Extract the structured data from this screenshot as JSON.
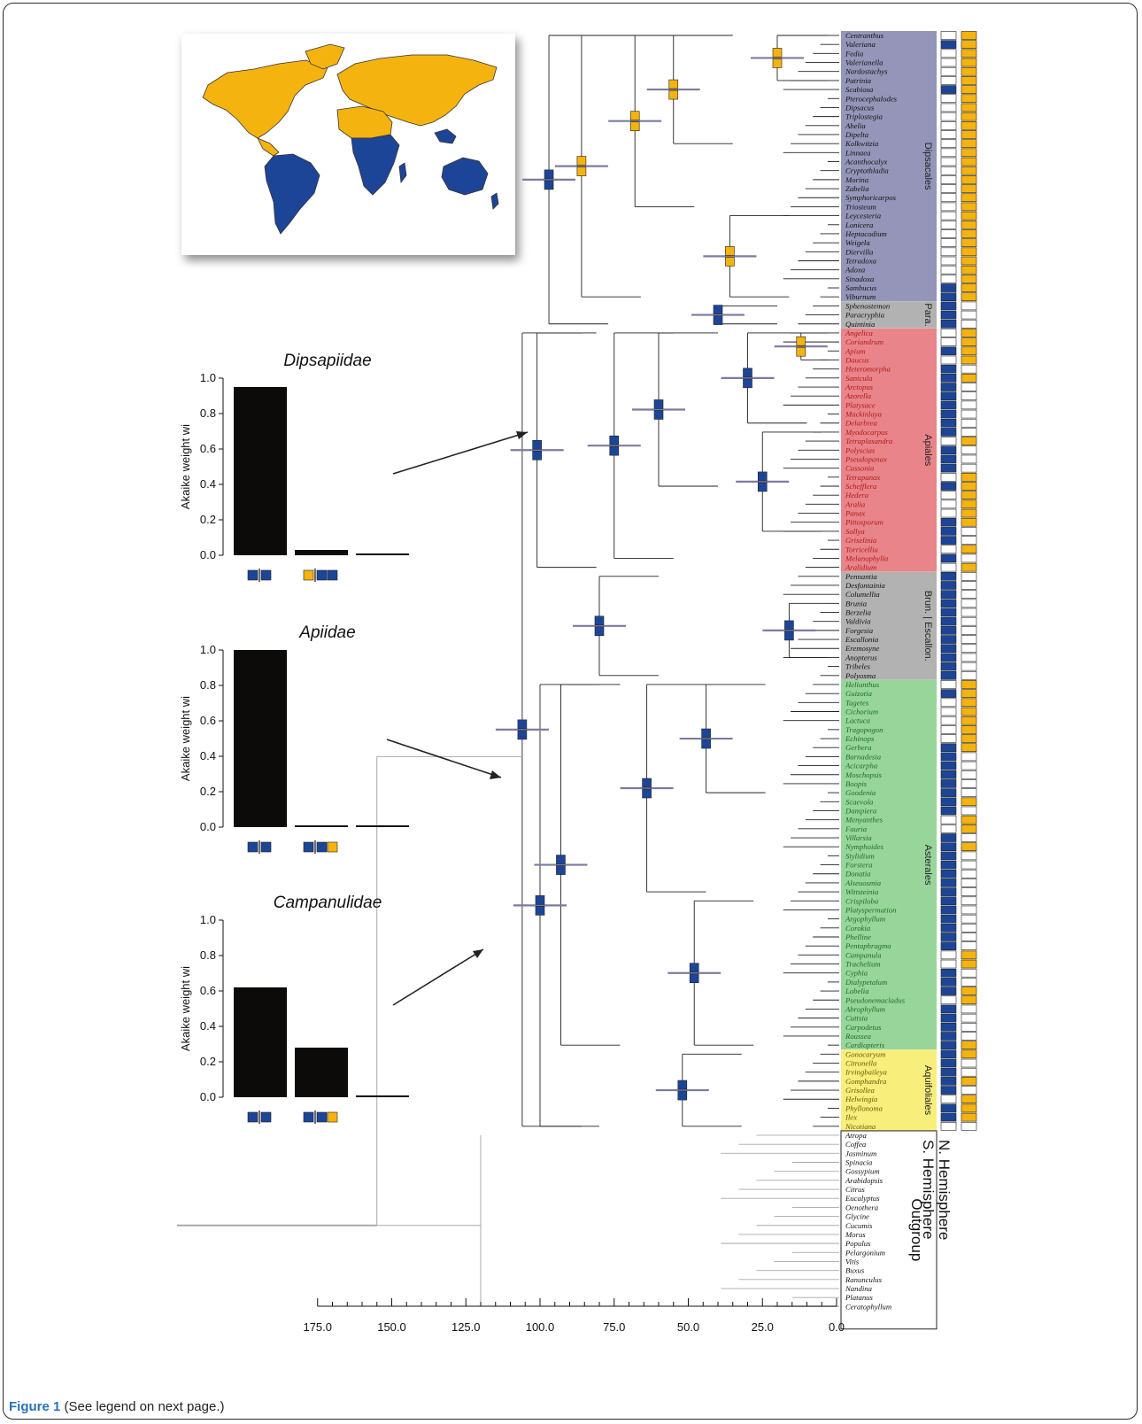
{
  "caption": {
    "label": "Figure 1",
    "text": "(See legend on next page.)"
  },
  "colors": {
    "north": "#f5b30f",
    "south": "#1d4597",
    "bar": "#0c0b0a",
    "hpd": "#7b7ba0",
    "outgroup": "#a8a8a8"
  },
  "map": {
    "northern_color": "#f5b30f",
    "southern_color": "#1d4597"
  },
  "panels": [
    {
      "title": "Dipsapiidae",
      "ylabel": "Akaike weight wi",
      "values": [
        0.95,
        0.03,
        0.01
      ],
      "models": [
        [
          "S",
          "S"
        ],
        [
          "N",
          "S",
          "S"
        ],
        [
          "S"
        ]
      ]
    },
    {
      "title": "Apiidae",
      "ylabel": "Akaike weight wi",
      "values": [
        1.0,
        0.01,
        0.01
      ],
      "models": [
        [
          "S",
          "S"
        ],
        [
          "S",
          "S",
          "N"
        ],
        [
          "S"
        ]
      ]
    },
    {
      "title": "Campanulidae",
      "ylabel": "Akaike weight wi",
      "values": [
        0.62,
        0.28,
        0.01
      ],
      "models": [
        [
          "S",
          "S"
        ],
        [
          "S",
          "S",
          "N"
        ],
        [
          "S"
        ]
      ]
    }
  ],
  "panel_ticks": [
    "0.0",
    "0.2",
    "0.4",
    "0.6",
    "0.8",
    "1.0"
  ],
  "time_axis": {
    "ticks": [
      "175.0",
      "150.0",
      "125.0",
      "100.0",
      "75.0",
      "50.0",
      "25.0",
      "0.0"
    ]
  },
  "clades": [
    {
      "name": "Dipsacales",
      "first": 0,
      "last": 29,
      "color": "#9495b8"
    },
    {
      "name": "Para.",
      "first": 30,
      "last": 32,
      "color": "#b2b2b2"
    },
    {
      "name": "Apiales",
      "first": 33,
      "last": 59,
      "color": "#e9858a"
    },
    {
      "name": "Brun. | Escallon.",
      "first": 60,
      "last": 71,
      "color": "#b2b2b2"
    },
    {
      "name": "Asterales",
      "first": 72,
      "last": 112,
      "color": "#98d59b"
    },
    {
      "name": "Aquifoliales",
      "first": 113,
      "last": 121,
      "color": "#f7ee7c"
    },
    {
      "name": "Outgroup",
      "first": 122,
      "last": 143,
      "color": "#ffffff"
    }
  ],
  "hemisphere_labels": {
    "north": "N. Hemisphere",
    "south": "S. Hemisphere"
  },
  "taxa": [
    {
      "name": "Centranthus",
      "s": 0,
      "n": 1
    },
    {
      "name": "Valeriana",
      "s": 1,
      "n": 1
    },
    {
      "name": "Fedia",
      "s": 0,
      "n": 1
    },
    {
      "name": "Valerianella",
      "s": 0,
      "n": 1
    },
    {
      "name": "Nardostachys",
      "s": 0,
      "n": 1
    },
    {
      "name": "Patrinia",
      "s": 0,
      "n": 1
    },
    {
      "name": "Scabiosa",
      "s": 1,
      "n": 1
    },
    {
      "name": "Pterocephalodes",
      "s": 0,
      "n": 1
    },
    {
      "name": "Dipsacus",
      "s": 0,
      "n": 1
    },
    {
      "name": "Triplostegia",
      "s": 0,
      "n": 1
    },
    {
      "name": "Abelia",
      "s": 0,
      "n": 1
    },
    {
      "name": "Dipelta",
      "s": 0,
      "n": 1
    },
    {
      "name": "Kolkwitzia",
      "s": 0,
      "n": 1
    },
    {
      "name": "Linnaea",
      "s": 0,
      "n": 1
    },
    {
      "name": "Acanthocalyx",
      "s": 0,
      "n": 1
    },
    {
      "name": "Cryptothladia",
      "s": 0,
      "n": 1
    },
    {
      "name": "Morina",
      "s": 0,
      "n": 1
    },
    {
      "name": "Zabelia",
      "s": 0,
      "n": 1
    },
    {
      "name": "Symphoricarpos",
      "s": 0,
      "n": 1
    },
    {
      "name": "Triosteum",
      "s": 0,
      "n": 1
    },
    {
      "name": "Leycesteria",
      "s": 0,
      "n": 1
    },
    {
      "name": "Lonicera",
      "s": 0,
      "n": 1
    },
    {
      "name": "Heptacodium",
      "s": 0,
      "n": 1
    },
    {
      "name": "Weigela",
      "s": 0,
      "n": 1
    },
    {
      "name": "Diervilla",
      "s": 0,
      "n": 1
    },
    {
      "name": "Tetradoxa",
      "s": 0,
      "n": 1
    },
    {
      "name": "Adoxa",
      "s": 0,
      "n": 1
    },
    {
      "name": "Sinadoxa",
      "s": 0,
      "n": 1
    },
    {
      "name": "Sambucus",
      "s": 1,
      "n": 1
    },
    {
      "name": "Viburnum",
      "s": 1,
      "n": 1
    },
    {
      "name": "Sphenostemon",
      "s": 1,
      "n": 0
    },
    {
      "name": "Paracryphia",
      "s": 1,
      "n": 0
    },
    {
      "name": "Quintinia",
      "s": 1,
      "n": 0
    },
    {
      "name": "Angelica",
      "s": 0,
      "n": 1
    },
    {
      "name": "Coriandrum",
      "s": 0,
      "n": 1
    },
    {
      "name": "Apium",
      "s": 1,
      "n": 1
    },
    {
      "name": "Daucus",
      "s": 0,
      "n": 1
    },
    {
      "name": "Heteromorpha",
      "s": 1,
      "n": 0
    },
    {
      "name": "Sanicula",
      "s": 1,
      "n": 1
    },
    {
      "name": "Arctopus",
      "s": 1,
      "n": 0
    },
    {
      "name": "Azorella",
      "s": 1,
      "n": 0
    },
    {
      "name": "Platysace",
      "s": 1,
      "n": 0
    },
    {
      "name": "Mackinlaya",
      "s": 1,
      "n": 0
    },
    {
      "name": "Delarbrea",
      "s": 1,
      "n": 0
    },
    {
      "name": "Myodocarpus",
      "s": 1,
      "n": 0
    },
    {
      "name": "Tetraplasandra",
      "s": 0,
      "n": 1
    },
    {
      "name": "Polyscias",
      "s": 1,
      "n": 0
    },
    {
      "name": "Pseudopanax",
      "s": 1,
      "n": 0
    },
    {
      "name": "Cussonia",
      "s": 1,
      "n": 0
    },
    {
      "name": "Tetrapanax",
      "s": 0,
      "n": 1
    },
    {
      "name": "Schefflera",
      "s": 1,
      "n": 1
    },
    {
      "name": "Hedera",
      "s": 0,
      "n": 1
    },
    {
      "name": "Aralia",
      "s": 0,
      "n": 1
    },
    {
      "name": "Panax",
      "s": 0,
      "n": 1
    },
    {
      "name": "Pittosporum",
      "s": 1,
      "n": 1
    },
    {
      "name": "Sollya",
      "s": 1,
      "n": 0
    },
    {
      "name": "Griselinia",
      "s": 1,
      "n": 0
    },
    {
      "name": "Torricellia",
      "s": 0,
      "n": 1
    },
    {
      "name": "Melanophylla",
      "s": 1,
      "n": 0
    },
    {
      "name": "Aralidium",
      "s": 0,
      "n": 1
    },
    {
      "name": "Pennantia",
      "s": 1,
      "n": 0
    },
    {
      "name": "Desfontainia",
      "s": 1,
      "n": 0
    },
    {
      "name": "Columellia",
      "s": 1,
      "n": 0
    },
    {
      "name": "Brunia",
      "s": 1,
      "n": 0
    },
    {
      "name": "Berzelia",
      "s": 1,
      "n": 0
    },
    {
      "name": "Valdivia",
      "s": 1,
      "n": 0
    },
    {
      "name": "Forgesia",
      "s": 1,
      "n": 0
    },
    {
      "name": "Escallonia",
      "s": 1,
      "n": 0
    },
    {
      "name": "Eremosyne",
      "s": 1,
      "n": 0
    },
    {
      "name": "Anopterus",
      "s": 1,
      "n": 0
    },
    {
      "name": "Tribeles",
      "s": 1,
      "n": 0
    },
    {
      "name": "Polyosma",
      "s": 1,
      "n": 0
    },
    {
      "name": "Helianthus",
      "s": 0,
      "n": 1
    },
    {
      "name": "Guizotia",
      "s": 1,
      "n": 1
    },
    {
      "name": "Tagetes",
      "s": 0,
      "n": 1
    },
    {
      "name": "Cichorium",
      "s": 0,
      "n": 1
    },
    {
      "name": "Lactuca",
      "s": 0,
      "n": 1
    },
    {
      "name": "Tragopogon",
      "s": 0,
      "n": 1
    },
    {
      "name": "Echinops",
      "s": 0,
      "n": 1
    },
    {
      "name": "Gerbera",
      "s": 1,
      "n": 1
    },
    {
      "name": "Barnadesia",
      "s": 1,
      "n": 0
    },
    {
      "name": "Acicarpha",
      "s": 1,
      "n": 0
    },
    {
      "name": "Moschopsis",
      "s": 1,
      "n": 0
    },
    {
      "name": "Boopis",
      "s": 1,
      "n": 0
    },
    {
      "name": "Goodenia",
      "s": 1,
      "n": 0
    },
    {
      "name": "Scaevola",
      "s": 1,
      "n": 1
    },
    {
      "name": "Dampiera",
      "s": 1,
      "n": 0
    },
    {
      "name": "Menyanthes",
      "s": 0,
      "n": 1
    },
    {
      "name": "Fauria",
      "s": 0,
      "n": 1
    },
    {
      "name": "Villarsia",
      "s": 1,
      "n": 0
    },
    {
      "name": "Nymphoides",
      "s": 1,
      "n": 1
    },
    {
      "name": "Stylidium",
      "s": 1,
      "n": 0
    },
    {
      "name": "Forstera",
      "s": 1,
      "n": 0
    },
    {
      "name": "Donatia",
      "s": 1,
      "n": 0
    },
    {
      "name": "Alseuosmia",
      "s": 1,
      "n": 0
    },
    {
      "name": "Wittsteinia",
      "s": 1,
      "n": 0
    },
    {
      "name": "Crispiloba",
      "s": 1,
      "n": 0
    },
    {
      "name": "Platyspermation",
      "s": 1,
      "n": 0
    },
    {
      "name": "Argophyllum",
      "s": 1,
      "n": 0
    },
    {
      "name": "Corokia",
      "s": 1,
      "n": 0
    },
    {
      "name": "Phelline",
      "s": 1,
      "n": 0
    },
    {
      "name": "Pentaphragma",
      "s": 1,
      "n": 0
    },
    {
      "name": "Campanula",
      "s": 0,
      "n": 1
    },
    {
      "name": "Trachelium",
      "s": 0,
      "n": 1
    },
    {
      "name": "Cyphia",
      "s": 1,
      "n": 0
    },
    {
      "name": "Dialypetalum",
      "s": 1,
      "n": 0
    },
    {
      "name": "Lobelia",
      "s": 1,
      "n": 1
    },
    {
      "name": "Pseudonemacladus",
      "s": 0,
      "n": 1
    },
    {
      "name": "Abrophyllum",
      "s": 1,
      "n": 0
    },
    {
      "name": "Cuttsia",
      "s": 1,
      "n": 0
    },
    {
      "name": "Carpodetus",
      "s": 1,
      "n": 0
    },
    {
      "name": "Roussea",
      "s": 1,
      "n": 0
    },
    {
      "name": "Cardiopteris",
      "s": 1,
      "n": 1
    },
    {
      "name": "Gonocaryum",
      "s": 1,
      "n": 1
    },
    {
      "name": "Citronella",
      "s": 1,
      "n": 0
    },
    {
      "name": "Irvingbaileya",
      "s": 1,
      "n": 0
    },
    {
      "name": "Gomphandra",
      "s": 1,
      "n": 1
    },
    {
      "name": "Grisollea",
      "s": 1,
      "n": 0
    },
    {
      "name": "Helwingia",
      "s": 0,
      "n": 1
    },
    {
      "name": "Phyllonoma",
      "s": 1,
      "n": 1
    },
    {
      "name": "Ilex",
      "s": 1,
      "n": 1
    },
    {
      "name": "Nicotiana",
      "s": 0,
      "n": 0
    },
    {
      "name": "Atropa",
      "s": 0,
      "n": 0
    },
    {
      "name": "Coffea",
      "s": 0,
      "n": 0
    },
    {
      "name": "Jasminum",
      "s": 0,
      "n": 0
    },
    {
      "name": "Spinacia",
      "s": 0,
      "n": 0
    },
    {
      "name": "Gossypium",
      "s": 0,
      "n": 0
    },
    {
      "name": "Arabidopsis",
      "s": 0,
      "n": 0
    },
    {
      "name": "Citrus",
      "s": 0,
      "n": 0
    },
    {
      "name": "Eucalyptus",
      "s": 0,
      "n": 0
    },
    {
      "name": "Oenothera",
      "s": 0,
      "n": 0
    },
    {
      "name": "Glycine",
      "s": 0,
      "n": 0
    },
    {
      "name": "Cucumis",
      "s": 0,
      "n": 0
    },
    {
      "name": "Morus",
      "s": 0,
      "n": 0
    },
    {
      "name": "Populus",
      "s": 0,
      "n": 0
    },
    {
      "name": "Pelargonium",
      "s": 0,
      "n": 0
    },
    {
      "name": "Vitis",
      "s": 0,
      "n": 0
    },
    {
      "name": "Buxus",
      "s": 0,
      "n": 0
    },
    {
      "name": "Ranunculus",
      "s": 0,
      "n": 0
    },
    {
      "name": "Nandina",
      "s": 0,
      "n": 0
    },
    {
      "name": "Platanus",
      "s": 0,
      "n": 0
    },
    {
      "name": "Ceratophyllum",
      "s": 0,
      "n": 0
    }
  ],
  "nodes": [
    {
      "age": 106,
      "first": 33,
      "last": 121,
      "kind": "S"
    },
    {
      "age": 101,
      "first": 33,
      "last": 59,
      "kind": "S"
    },
    {
      "age": 100,
      "first": 72,
      "last": 121,
      "kind": "S"
    },
    {
      "age": 97,
      "first": 0,
      "last": 32,
      "kind": "S"
    },
    {
      "age": 93,
      "first": 72,
      "last": 112,
      "kind": "S"
    },
    {
      "age": 86,
      "first": 0,
      "last": 29,
      "kind": "N"
    },
    {
      "age": 80,
      "first": 60,
      "last": 71,
      "kind": "S"
    },
    {
      "age": 75,
      "first": 33,
      "last": 58,
      "kind": "S"
    },
    {
      "age": 68,
      "first": 0,
      "last": 19,
      "kind": "N"
    },
    {
      "age": 64,
      "first": 72,
      "last": 95,
      "kind": "S"
    },
    {
      "age": 60,
      "first": 33,
      "last": 50,
      "kind": "S"
    },
    {
      "age": 55,
      "first": 0,
      "last": 12,
      "kind": "N"
    },
    {
      "age": 52,
      "first": 113,
      "last": 121,
      "kind": "S"
    },
    {
      "age": 48,
      "first": 96,
      "last": 112,
      "kind": "S"
    },
    {
      "age": 44,
      "first": 72,
      "last": 84,
      "kind": "S"
    },
    {
      "age": 40,
      "first": 30,
      "last": 32,
      "kind": "S"
    },
    {
      "age": 36,
      "first": 20,
      "last": 29,
      "kind": "N"
    },
    {
      "age": 30,
      "first": 33,
      "last": 43,
      "kind": "S"
    },
    {
      "age": 25,
      "first": 44,
      "last": 55,
      "kind": "S"
    },
    {
      "age": 20,
      "first": 0,
      "last": 5,
      "kind": "N"
    },
    {
      "age": 16,
      "first": 63,
      "last": 69,
      "kind": "S"
    },
    {
      "age": 12,
      "first": 33,
      "last": 36,
      "kind": "N"
    }
  ]
}
